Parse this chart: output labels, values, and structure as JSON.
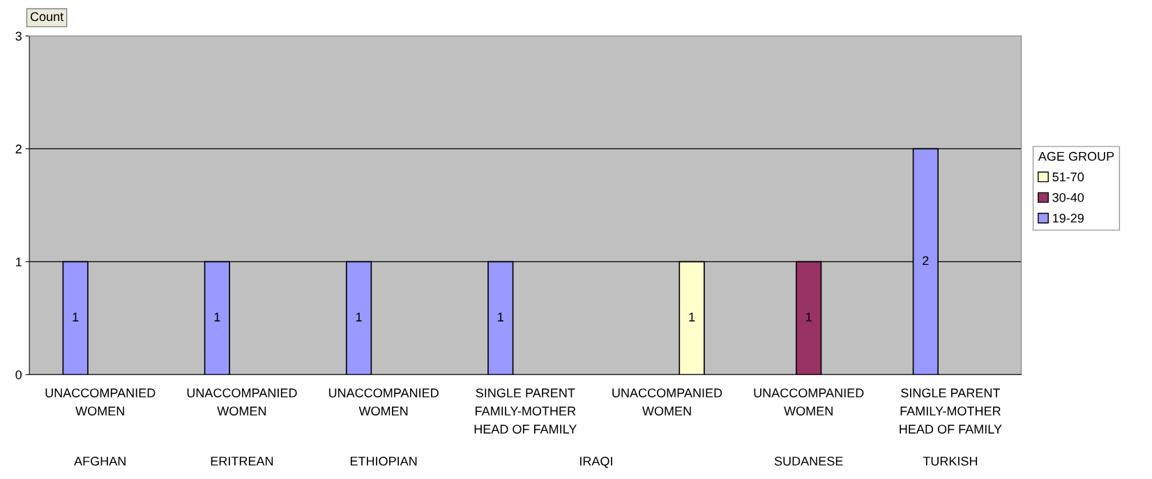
{
  "chart_data": {
    "type": "bar",
    "ylabel": "Count",
    "legend_title": "AGE GROUP",
    "categories": [
      "UNACCOMPANIED\nWOMEN",
      "UNACCOMPANIED\nWOMEN",
      "UNACCOMPANIED\nWOMEN",
      "SINGLE PARENT\nFAMILY-MOTHER\nHEAD OF FAMILY",
      "UNACCOMPANIED\nWOMEN",
      "UNACCOMPANIED\nWOMEN",
      "SINGLE PARENT\nFAMILY-MOTHER\nHEAD OF FAMILY"
    ],
    "series": [
      {
        "name": "19-29",
        "color": "#9999ff",
        "values": [
          1,
          1,
          1,
          1,
          null,
          null,
          2
        ]
      },
      {
        "name": "30-40",
        "color": "#993366",
        "values": [
          null,
          null,
          null,
          null,
          null,
          1,
          null
        ]
      },
      {
        "name": "51-70",
        "color": "#ffffcc",
        "values": [
          null,
          null,
          null,
          null,
          1,
          null,
          null
        ]
      }
    ],
    "annotations": [
      "AFGHAN",
      "ERITREAN",
      "ETHIOPIAN",
      "IRAQI",
      "SUDANESE",
      "TURKISH"
    ],
    "ylim": [
      0,
      3
    ],
    "yticks": [
      0,
      1,
      2,
      3
    ],
    "grid": "y",
    "legend": "right",
    "data_labels": true
  }
}
